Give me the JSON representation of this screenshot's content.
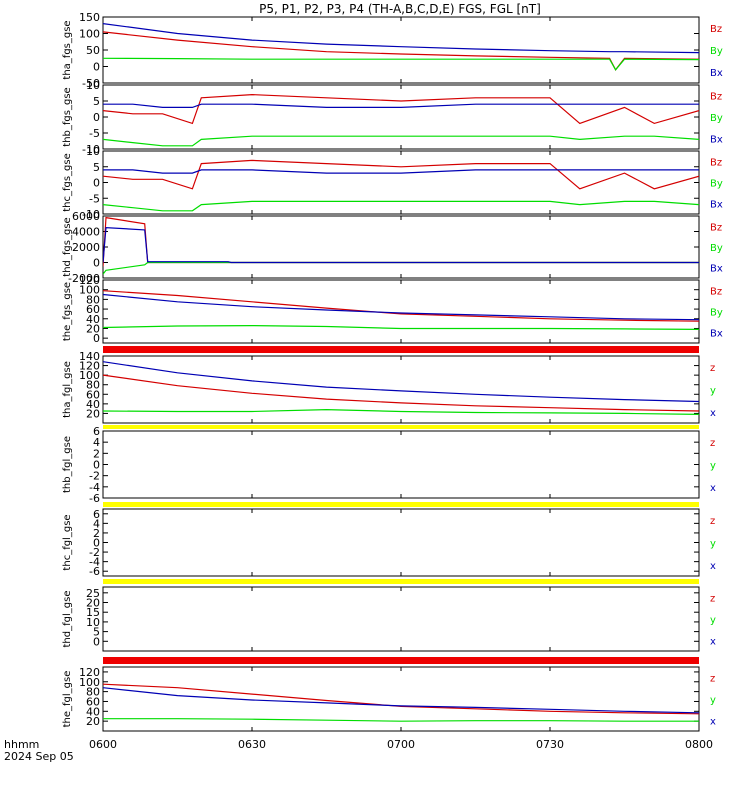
{
  "title": "P5, P1, P2, P3, P4 (TH-A,B,C,D,E) FGS, FGL [nT]",
  "xaxis": {
    "ticks": [
      "0600",
      "0630",
      "0700",
      "0730",
      "0800"
    ],
    "hour_range": [
      6,
      8
    ],
    "label_line1": "hhmm",
    "label_line2": "2024 Sep 05"
  },
  "colors": {
    "z": "#d40000",
    "y": "#00dd00",
    "x": "#0000b4",
    "red_bar": "#ee0000",
    "yellow_bar": "#ffff00"
  },
  "chart_data": [
    {
      "type": "line",
      "name": "tha_fgs_gse",
      "ylabel": "tha_fgs_gse",
      "ylim": [
        -50,
        150
      ],
      "yticks": [
        "150",
        "100",
        "50",
        "0",
        "-50"
      ],
      "ytick_values": [
        150,
        100,
        50,
        0,
        -50
      ],
      "legend": [
        "Bz",
        "By",
        "Bx"
      ],
      "x": [
        6.0,
        6.25,
        6.5,
        6.75,
        7.0,
        7.25,
        7.5,
        7.7,
        7.72,
        7.75,
        8.0
      ],
      "series": [
        {
          "component": "z",
          "values": [
            105,
            80,
            60,
            45,
            38,
            32,
            28,
            25,
            -10,
            25,
            22
          ]
        },
        {
          "component": "y",
          "values": [
            25,
            24,
            22,
            22,
            22,
            22,
            22,
            22,
            -10,
            22,
            21
          ]
        },
        {
          "component": "x",
          "values": [
            130,
            100,
            80,
            68,
            60,
            53,
            48,
            45,
            45,
            45,
            42
          ]
        }
      ]
    },
    {
      "type": "line",
      "name": "thb_fgs_gse",
      "ylabel": "thb_fgs_gse",
      "ylim": [
        -10,
        10
      ],
      "yticks": [
        "10",
        "5",
        "0",
        "-5",
        "-10"
      ],
      "ytick_values": [
        10,
        5,
        0,
        -5,
        -10
      ],
      "legend": [
        "Bz",
        "By",
        "Bx"
      ],
      "x": [
        6.0,
        6.1,
        6.2,
        6.3,
        6.33,
        6.5,
        6.75,
        7.0,
        7.25,
        7.5,
        7.6,
        7.75,
        7.85,
        8.0
      ],
      "series": [
        {
          "component": "z",
          "values": [
            2,
            1,
            1,
            -2,
            6,
            7,
            6,
            5,
            6,
            6,
            -2,
            3,
            -2,
            2
          ]
        },
        {
          "component": "y",
          "values": [
            -7,
            -8,
            -9,
            -9,
            -7,
            -6,
            -6,
            -6,
            -6,
            -6,
            -7,
            -6,
            -6,
            -7
          ]
        },
        {
          "component": "x",
          "values": [
            4,
            4,
            3,
            3,
            4,
            4,
            3,
            3,
            4,
            4,
            4,
            4,
            4,
            4
          ]
        }
      ]
    },
    {
      "type": "line",
      "name": "thc_fgs_gse",
      "ylabel": "thc_fgs_gse",
      "ylim": [
        -10,
        10
      ],
      "yticks": [
        "10",
        "5",
        "0",
        "-5",
        "-10"
      ],
      "ytick_values": [
        10,
        5,
        0,
        -5,
        -10
      ],
      "legend": [
        "Bz",
        "By",
        "Bx"
      ],
      "x": [
        6.0,
        6.1,
        6.2,
        6.3,
        6.33,
        6.5,
        6.75,
        7.0,
        7.25,
        7.5,
        7.6,
        7.75,
        7.85,
        8.0
      ],
      "series": [
        {
          "component": "z",
          "values": [
            2,
            1,
            1,
            -2,
            6,
            7,
            6,
            5,
            6,
            6,
            -2,
            3,
            -2,
            2
          ]
        },
        {
          "component": "y",
          "values": [
            -7,
            -8,
            -9,
            -9,
            -7,
            -6,
            -6,
            -6,
            -6,
            -6,
            -7,
            -6,
            -6,
            -7
          ]
        },
        {
          "component": "x",
          "values": [
            4,
            4,
            3,
            3,
            4,
            4,
            3,
            3,
            4,
            4,
            4,
            4,
            4,
            4
          ]
        }
      ]
    },
    {
      "type": "line",
      "name": "thd_fgs_gse",
      "ylabel": "thd_fgs_gse",
      "ylim": [
        -2000,
        6000
      ],
      "yticks": [
        "6000",
        "4000",
        "2000",
        "0",
        "-2000"
      ],
      "ytick_values": [
        6000,
        4000,
        2000,
        0,
        -2000
      ],
      "legend": [
        "Bz",
        "By",
        "Bx"
      ],
      "x": [
        6.0,
        6.01,
        6.14,
        6.15,
        6.42,
        6.43,
        8.0
      ],
      "series": [
        {
          "component": "z",
          "values": [
            -500,
            5800,
            5000,
            0,
            0,
            0,
            0
          ]
        },
        {
          "component": "y",
          "values": [
            -1500,
            -1000,
            -300,
            0,
            0,
            0,
            0
          ]
        },
        {
          "component": "x",
          "values": [
            0,
            4500,
            4200,
            100,
            100,
            0,
            0
          ]
        }
      ]
    },
    {
      "type": "line",
      "name": "the_fgs_gse",
      "ylabel": "the_fgs_gse",
      "ylim": [
        -10,
        120
      ],
      "yticks": [
        "120",
        "100",
        "80",
        "60",
        "40",
        "20",
        "0"
      ],
      "ytick_values": [
        120,
        100,
        80,
        60,
        40,
        20,
        0
      ],
      "legend": [
        "Bz",
        "By",
        "Bx"
      ],
      "x": [
        6.0,
        6.25,
        6.5,
        6.75,
        7.0,
        7.25,
        7.5,
        7.75,
        8.0
      ],
      "series": [
        {
          "component": "z",
          "values": [
            98,
            88,
            75,
            62,
            50,
            45,
            40,
            37,
            35
          ]
        },
        {
          "component": "y",
          "values": [
            22,
            25,
            26,
            24,
            20,
            20,
            20,
            19,
            18
          ]
        },
        {
          "component": "x",
          "values": [
            90,
            75,
            65,
            58,
            52,
            48,
            44,
            40,
            38
          ]
        }
      ]
    },
    {
      "type": "line",
      "name": "tha_fgl_gse",
      "ylabel": "tha_fgl_gse",
      "ylim": [
        0,
        140
      ],
      "yticks": [
        "140",
        "120",
        "100",
        "80",
        "60",
        "40",
        "20"
      ],
      "ytick_values": [
        140,
        120,
        100,
        80,
        60,
        40,
        20
      ],
      "legend": [
        "z",
        "y",
        "x"
      ],
      "x": [
        6.0,
        6.25,
        6.5,
        6.75,
        7.0,
        7.25,
        7.5,
        7.75,
        8.0
      ],
      "series": [
        {
          "component": "z",
          "values": [
            100,
            78,
            62,
            50,
            42,
            36,
            32,
            28,
            25
          ]
        },
        {
          "component": "y",
          "values": [
            25,
            24,
            24,
            28,
            24,
            22,
            21,
            20,
            18
          ]
        },
        {
          "component": "x",
          "values": [
            128,
            105,
            88,
            75,
            67,
            60,
            54,
            49,
            45
          ]
        }
      ]
    },
    {
      "type": "line",
      "name": "thb_fgl_gse",
      "ylabel": "thb_fgl_gse",
      "ylim": [
        -6,
        6
      ],
      "yticks": [
        "6",
        "4",
        "2",
        "0",
        "-2",
        "-4",
        "-6"
      ],
      "ytick_values": [
        6,
        4,
        2,
        0,
        -2,
        -4,
        -6
      ],
      "legend": [
        "z",
        "y",
        "x"
      ],
      "x": [],
      "series": []
    },
    {
      "type": "line",
      "name": "thc_fgl_gse",
      "ylabel": "thc_fgl_gse",
      "ylim": [
        -7,
        7
      ],
      "yticks": [
        "6",
        "4",
        "2",
        "0",
        "-2",
        "-4",
        "-6"
      ],
      "ytick_values": [
        6,
        4,
        2,
        0,
        -2,
        -4,
        -6
      ],
      "legend": [
        "z",
        "y",
        "x"
      ],
      "x": [],
      "series": []
    },
    {
      "type": "line",
      "name": "thd_fgl_gse",
      "ylabel": "thd_fgl_gse",
      "ylim": [
        -5,
        28
      ],
      "yticks": [
        "25",
        "20",
        "15",
        "10",
        "5",
        "0"
      ],
      "ytick_values": [
        25,
        20,
        15,
        10,
        5,
        0
      ],
      "legend": [
        "z",
        "y",
        "x"
      ],
      "x": [],
      "series": []
    },
    {
      "type": "line",
      "name": "the_fgl_gse",
      "ylabel": "the_fgl_gse",
      "ylim": [
        0,
        130
      ],
      "yticks": [
        "120",
        "100",
        "80",
        "60",
        "40",
        "20"
      ],
      "ytick_values": [
        120,
        100,
        80,
        60,
        40,
        20
      ],
      "legend": [
        "z",
        "y",
        "x"
      ],
      "x": [
        6.0,
        6.25,
        6.5,
        6.75,
        7.0,
        7.25,
        7.5,
        7.75,
        8.0
      ],
      "series": [
        {
          "component": "z",
          "values": [
            95,
            88,
            75,
            62,
            50,
            45,
            40,
            37,
            35
          ]
        },
        {
          "component": "y",
          "values": [
            25,
            25,
            24,
            22,
            20,
            21,
            21,
            20,
            20
          ]
        },
        {
          "component": "x",
          "values": [
            88,
            72,
            63,
            57,
            51,
            48,
            44,
            40,
            37
          ]
        }
      ]
    }
  ],
  "status_bars": [
    {
      "after_panel": "the_fgs_gse",
      "color": "red"
    },
    {
      "after_panel": "tha_fgl_gse",
      "color": "yellow"
    },
    {
      "after_panel": "thb_fgl_gse",
      "color": "yellow"
    },
    {
      "after_panel": "thc_fgl_gse",
      "color": "yellow"
    },
    {
      "after_panel": "thd_fgl_gse",
      "color": "red"
    }
  ]
}
